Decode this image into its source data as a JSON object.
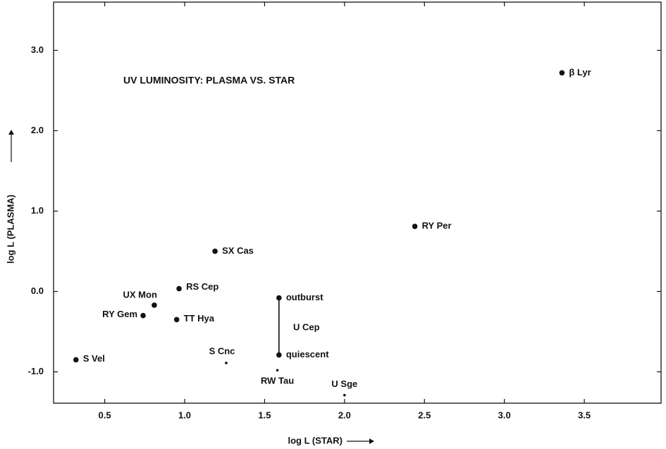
{
  "chart_data": {
    "type": "scatter",
    "title": "UV LUMINOSITY: PLASMA VS. STAR",
    "xlabel": "log L (STAR)",
    "ylabel": "log L (PLASMA)",
    "xlim": [
      0.18,
      3.98
    ],
    "ylim": [
      -1.39,
      3.6
    ],
    "xticks": [
      0.5,
      {
        "value": 1,
        "label": "1.0"
      },
      1.5,
      {
        "value": 2,
        "label": "2.0"
      },
      2.5,
      {
        "value": 3,
        "label": "3.0"
      },
      3.5
    ],
    "yticks": [
      {
        "value": 3,
        "label": "3.0"
      },
      {
        "value": 2,
        "label": "2.0"
      },
      {
        "value": 1,
        "label": "1.0"
      },
      {
        "value": 0,
        "label": "0.0"
      },
      {
        "value": -1,
        "label": "-1.0"
      }
    ],
    "annotations": [
      "U Cep"
    ],
    "series": [
      {
        "color": "#111111",
        "marker": "large",
        "line": false,
        "x": [
          3.36,
          2.44,
          1.19,
          0.965,
          0.81,
          0.74,
          0.95,
          0.32
        ],
        "values": [
          2.72,
          0.81,
          0.5,
          0.035,
          -0.17,
          -0.3,
          -0.35,
          -0.85
        ],
        "labels": [
          "β Lyr",
          "RY Per",
          "SX Cas",
          "RS Cep",
          "UX Mon",
          "RY Gem",
          "TT Hya",
          "S Vel"
        ]
      },
      {
        "color": "#111111",
        "marker": "small",
        "line": false,
        "x": [
          1.26,
          1.58,
          2.0
        ],
        "values": [
          -0.89,
          -0.98,
          -1.29
        ],
        "labels": [
          "S Cnc",
          "RW Tau",
          "U Sge"
        ]
      },
      {
        "color": "#111111",
        "marker": "large",
        "line": true,
        "x": [
          1.59,
          1.59
        ],
        "values": [
          -0.08,
          -0.79
        ],
        "labels": [
          "outburst",
          "quiescent"
        ]
      }
    ]
  }
}
